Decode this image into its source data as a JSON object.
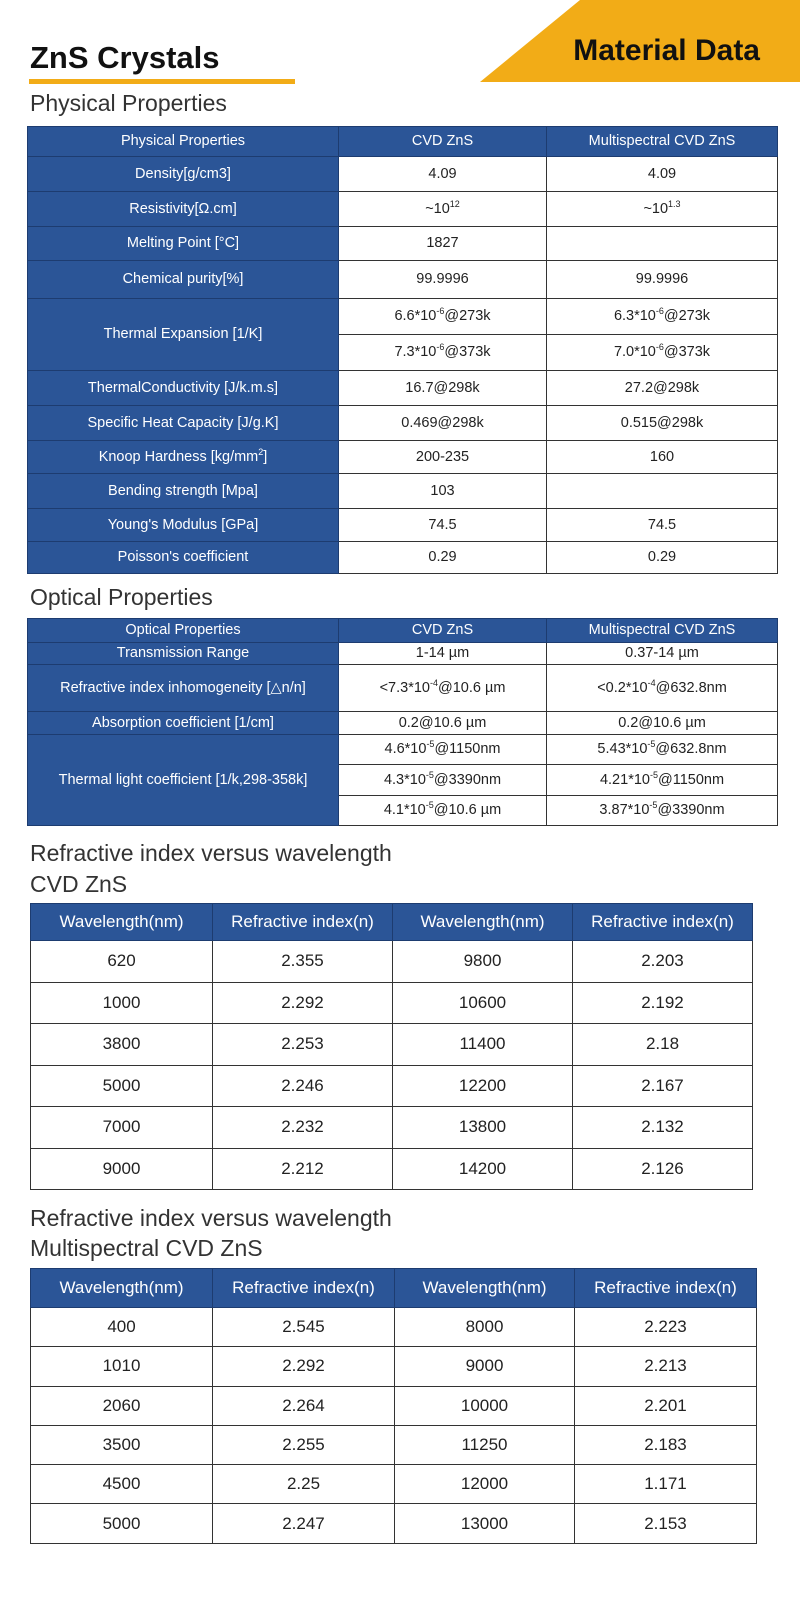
{
  "header": {
    "title": "ZnS Crystals",
    "banner": "Material Data"
  },
  "colors": {
    "accent": "#f2ac17",
    "table_blue": "#2b5597"
  },
  "physical": {
    "heading": "Physical Properties",
    "columns": [
      "Physical Properties",
      "CVD ZnS",
      "Multispectral CVD ZnS"
    ],
    "rows": [
      {
        "label": "Density[g/cm3]",
        "cvd": [
          "4.09"
        ],
        "multi": [
          "4.09"
        ]
      },
      {
        "label": "Resistivity[Ω.cm]",
        "cvd": [
          "~10",
          "12",
          ""
        ],
        "multi": [
          "~10",
          "1.3",
          ""
        ]
      },
      {
        "label": "Melting Point [°C]",
        "cvd": [
          "1827"
        ],
        "multi": [
          ""
        ]
      },
      {
        "label": "Chemical purity[%]",
        "cvd": [
          "99.9996"
        ],
        "multi": [
          "99.9996"
        ]
      },
      {
        "label": "Thermal Expansion [1/K]",
        "cvd": [
          "6.6*10",
          "-6",
          "@273k"
        ],
        "multi": [
          "6.3*10",
          "-6",
          "@273k"
        ],
        "sub": [
          {
            "cvd": [
              "7.3*10",
              "-6",
              "@373k"
            ],
            "multi": [
              "7.0*10",
              "-6",
              "@373k"
            ]
          }
        ]
      },
      {
        "label": "ThermalConductivity [J/k.m.s]",
        "cvd": [
          "16.7@298k"
        ],
        "multi": [
          "27.2@298k"
        ]
      },
      {
        "label": "Specific Heat Capacity [J/g.K]",
        "cvd": [
          "0.469@298k"
        ],
        "multi": [
          "0.515@298k"
        ]
      },
      {
        "label": "Knoop Hardness [kg/mm",
        "labelsup": "2",
        "labelpost": "]",
        "cvd": [
          "200-235"
        ],
        "multi": [
          "160"
        ]
      },
      {
        "label": "Bending strength [Mpa]",
        "cvd": [
          "103"
        ],
        "multi": [
          ""
        ]
      },
      {
        "label": "Young's Modulus [GPa]",
        "cvd": [
          "74.5"
        ],
        "multi": [
          "74.5"
        ]
      },
      {
        "label": "Poisson's coefficient",
        "cvd": [
          "0.29"
        ],
        "multi": [
          "0.29"
        ]
      }
    ]
  },
  "optical": {
    "heading": "Optical Properties",
    "columns": [
      "Optical Properties",
      "CVD ZnS",
      "Multispectral CVD ZnS"
    ],
    "rows": [
      {
        "label": "Transmission Range",
        "cvd": [
          "1-14 µm"
        ],
        "multi": [
          "0.37-14 µm"
        ]
      },
      {
        "label": "Refractive index inhomogeneity [△n/n]",
        "cvd": [
          "<7.3*10",
          "-4",
          "@10.6 µm"
        ],
        "multi": [
          "<0.2*10",
          "-4",
          "@632.8nm"
        ]
      },
      {
        "label": "Absorption coefficient [1/cm]",
        "cvd": [
          "0.2@10.6 µm"
        ],
        "multi": [
          "0.2@10.6 µm"
        ]
      },
      {
        "label": "Thermal light coefficient [1/k,298-358k]",
        "cvd": [
          "4.6*10",
          "-5",
          "@1150nm"
        ],
        "multi": [
          "5.43*10",
          "-5",
          "@632.8nm"
        ],
        "sub": [
          {
            "cvd": [
              "4.3*10",
              "-5",
              "@3390nm"
            ],
            "multi": [
              "4.21*10",
              "-5",
              "@1150nm"
            ]
          },
          {
            "cvd": [
              "4.1*10",
              "-5",
              "@10.6 µm"
            ],
            "multi": [
              "3.87*10",
              "-5",
              "@3390nm"
            ]
          }
        ]
      }
    ]
  },
  "ri_cvd": {
    "heading": "Refractive index versus wavelength",
    "subheading": "CVD ZnS",
    "columns": [
      "Wavelength(nm)",
      "Refractive index(n)",
      "Wavelength(nm)",
      "Refractive index(n)"
    ],
    "rows": [
      [
        "620",
        "2.355",
        "9800",
        "2.203"
      ],
      [
        "1000",
        "2.292",
        "10600",
        "2.192"
      ],
      [
        "3800",
        "2.253",
        "11400",
        "2.18"
      ],
      [
        "5000",
        "2.246",
        "12200",
        "2.167"
      ],
      [
        "7000",
        "2.232",
        "13800",
        "2.132"
      ],
      [
        "9000",
        "2.212",
        "14200",
        "2.126"
      ]
    ]
  },
  "ri_multi": {
    "heading": "Refractive index versus wavelength",
    "subheading": "Multispectral CVD ZnS",
    "columns": [
      "Wavelength(nm)",
      "Refractive index(n)",
      "Wavelength(nm)",
      "Refractive index(n)"
    ],
    "rows": [
      [
        "400",
        "2.545",
        "8000",
        "2.223"
      ],
      [
        "1010",
        "2.292",
        "9000",
        "2.213"
      ],
      [
        "2060",
        "2.264",
        "10000",
        "2.201"
      ],
      [
        "3500",
        "2.255",
        "11250",
        "2.183"
      ],
      [
        "4500",
        "2.25",
        "12000",
        "1.171"
      ],
      [
        "5000",
        "2.247",
        "13000",
        "2.153"
      ]
    ]
  }
}
